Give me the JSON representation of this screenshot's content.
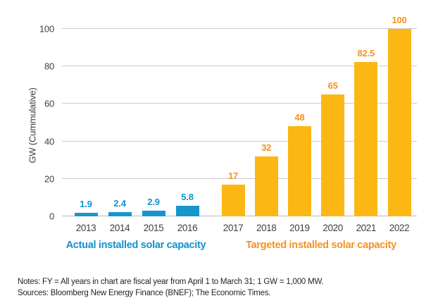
{
  "chart_data": {
    "type": "bar",
    "title": "",
    "xlabel": "",
    "ylabel": "GW (Cummulative)",
    "ylim": [
      0,
      100
    ],
    "yticks": [
      0,
      20,
      40,
      60,
      80,
      100
    ],
    "grid": true,
    "legend_position": "below-axis-captions",
    "series": [
      {
        "name": "Actual installed solar capacity",
        "bar_color": "#1796CD",
        "label_color": "#0E93D0",
        "categories": [
          "2013",
          "2014",
          "2015",
          "2016"
        ],
        "values": [
          1.9,
          2.4,
          2.9,
          5.8
        ],
        "value_labels": [
          "1.9",
          "2.4",
          "2.9",
          "5.8"
        ]
      },
      {
        "name": "Targeted installed solar capacity",
        "bar_color": "#FDB714",
        "label_color": "#F6921E",
        "categories": [
          "2017",
          "2018",
          "2019",
          "2020",
          "2021",
          "2022"
        ],
        "values": [
          17,
          32,
          48,
          65,
          82.5,
          100
        ],
        "value_labels": [
          "17",
          "32",
          "48",
          "65",
          "82.5",
          "100"
        ]
      }
    ],
    "colors": {
      "gridline": "#CCCCCC",
      "baseline": "#B9B9B9",
      "axis_text": "#414042"
    }
  },
  "notes": {
    "line1": "Notes: FY = All years in chart are fiscal year from April 1 to March 31; 1 GW = 1,000 MW.",
    "line2": "Sources: Bloomberg New Energy Finance (BNEF); The Economic Times."
  }
}
